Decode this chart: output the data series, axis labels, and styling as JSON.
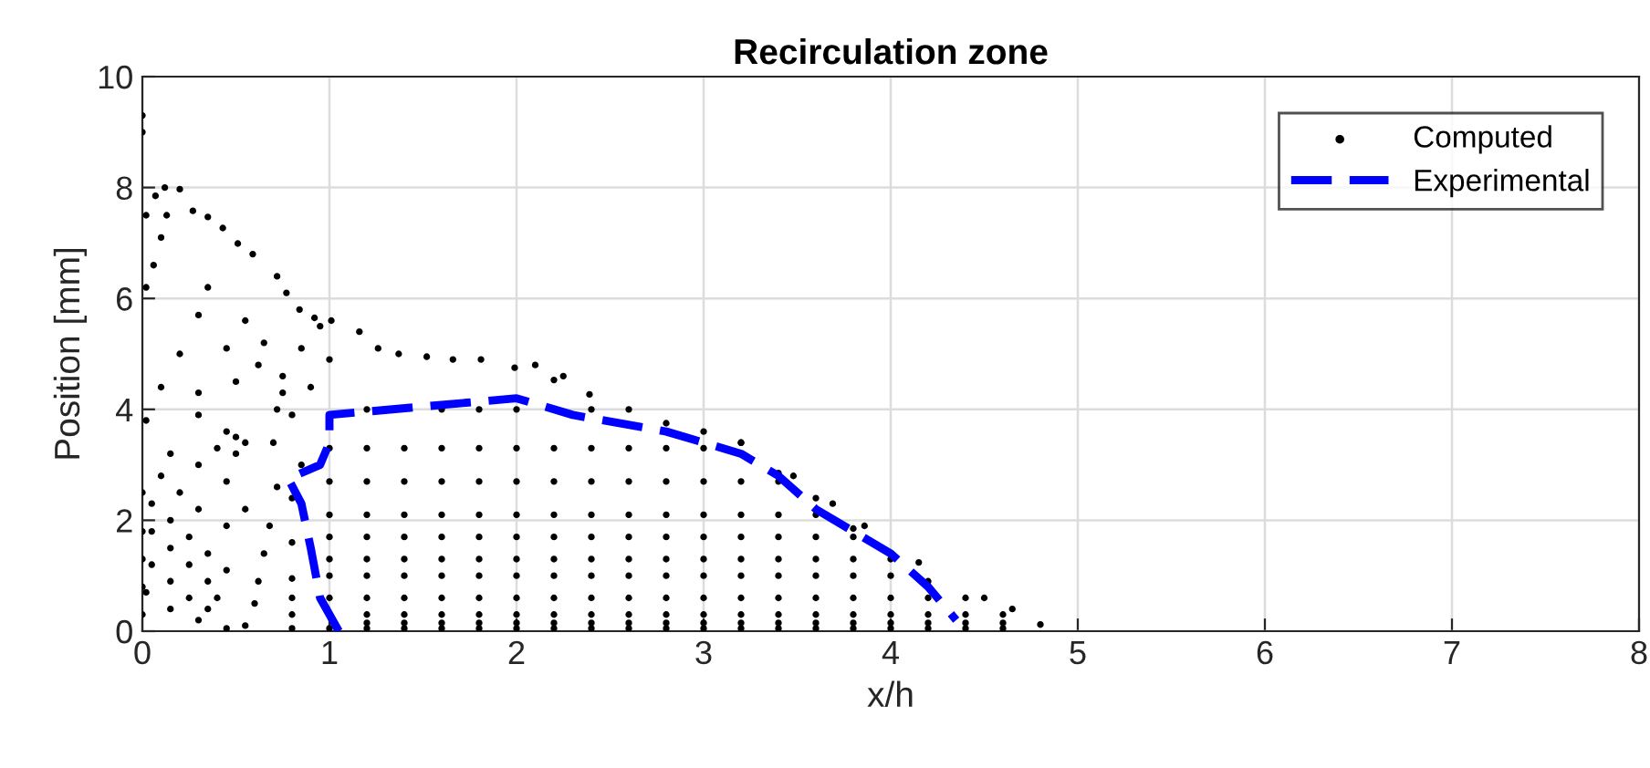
{
  "chart_data": {
    "type": "scatter",
    "title": "Recirculation zone",
    "xlabel": "x/h",
    "ylabel": "Position [mm]",
    "xlim": [
      0,
      8
    ],
    "ylim": [
      0,
      10
    ],
    "xticks": [
      0,
      1,
      2,
      3,
      4,
      5,
      6,
      7,
      8
    ],
    "yticks": [
      0,
      2,
      4,
      6,
      8,
      10
    ],
    "grid": true,
    "legend": "top right",
    "series": [
      {
        "name": "Computed",
        "marker": "circle",
        "color": "#000000",
        "x": [
          1.0,
          1.0,
          1.0,
          1.0,
          1.0,
          1.0,
          1.0,
          1.0,
          1.2,
          1.2,
          1.2,
          1.2,
          1.2,
          1.2,
          1.2,
          1.2,
          1.2,
          1.2,
          1.2,
          1.4,
          1.4,
          1.4,
          1.4,
          1.4,
          1.4,
          1.4,
          1.4,
          1.4,
          1.4,
          1.6,
          1.6,
          1.6,
          1.6,
          1.6,
          1.6,
          1.6,
          1.6,
          1.6,
          1.6,
          1.6,
          1.8,
          1.8,
          1.8,
          1.8,
          1.8,
          1.8,
          1.8,
          1.8,
          1.8,
          1.8,
          1.8,
          2.0,
          2.0,
          2.0,
          2.0,
          2.0,
          2.0,
          2.0,
          2.0,
          2.0,
          2.0,
          2.0,
          2.2,
          2.2,
          2.2,
          2.2,
          2.2,
          2.2,
          2.2,
          2.2,
          2.2,
          2.2,
          2.4,
          2.4,
          2.4,
          2.4,
          2.4,
          2.4,
          2.4,
          2.4,
          2.4,
          2.4,
          2.4,
          2.6,
          2.6,
          2.6,
          2.6,
          2.6,
          2.6,
          2.6,
          2.6,
          2.6,
          2.6,
          2.6,
          2.8,
          2.8,
          2.8,
          2.8,
          2.8,
          2.8,
          2.8,
          2.8,
          2.8,
          2.8,
          2.8,
          3.0,
          3.0,
          3.0,
          3.0,
          3.0,
          3.0,
          3.0,
          3.0,
          3.0,
          3.0,
          3.0,
          3.2,
          3.2,
          3.2,
          3.2,
          3.2,
          3.2,
          3.2,
          3.2,
          3.2,
          3.2,
          3.4,
          3.4,
          3.4,
          3.4,
          3.4,
          3.4,
          3.4,
          3.4,
          3.4,
          3.4,
          3.6,
          3.6,
          3.6,
          3.6,
          3.6,
          3.6,
          3.6,
          3.6,
          3.6,
          3.8,
          3.8,
          3.8,
          3.8,
          3.8,
          3.8,
          3.8,
          3.8,
          4.0,
          4.0,
          4.0,
          4.0,
          4.0,
          4.0,
          4.2,
          4.2,
          4.2,
          4.2,
          4.2,
          4.4,
          4.4,
          4.4,
          4.4,
          4.6,
          4.6,
          4.6,
          4.8,
          0.8,
          0.8,
          0.8,
          0.8,
          0.8,
          0.8,
          0.85,
          0.55,
          0.6,
          0.62,
          0.65,
          0.68,
          0.72,
          0.7,
          0.72,
          0.75,
          0.85,
          0.95,
          1.0,
          0.9,
          0.8,
          0.02,
          0.15,
          0.3,
          0.45,
          0.05,
          0.15,
          0.25,
          0.35,
          0.05,
          0.15,
          0.25,
          0.35,
          0.4,
          0.05,
          0.15,
          0.25,
          0.35,
          0.45,
          0.1,
          0.2,
          0.3,
          0.45,
          0.15,
          0.3,
          0.45,
          0.55,
          0.4,
          0.45,
          0.5,
          0.55,
          0.5,
          0.3,
          0.3,
          0.5,
          0.45,
          0.55,
          0.65,
          0.75,
          0.62,
          0.0,
          0.0,
          0.0,
          0.0,
          0.0,
          0.02,
          0.1,
          0.2,
          0.3,
          0.35,
          0.02,
          0.06,
          0.1,
          0.13,
          0.0,
          0.0,
          0.12,
          0.2,
          0.07,
          0.02,
          0.27,
          0.35,
          0.43,
          0.51,
          0.59,
          0.72,
          0.77,
          0.84,
          0.92,
          1.01,
          1.16,
          1.26,
          1.37,
          1.52,
          1.66,
          1.81,
          1.99,
          2.1,
          2.25,
          2.2,
          2.39,
          3.2,
          3.48,
          3.69,
          3.86,
          4.15,
          4.5,
          4.65
        ],
        "values": [
          0.05,
          0.6,
          1.0,
          1.3,
          1.7,
          2.1,
          2.7,
          3.3,
          0.05,
          0.15,
          0.3,
          0.6,
          1.0,
          1.3,
          1.7,
          2.1,
          2.7,
          3.3,
          4.0,
          0.05,
          0.15,
          0.3,
          0.6,
          1.0,
          1.3,
          1.7,
          2.1,
          2.7,
          3.3,
          0.05,
          0.15,
          0.3,
          0.6,
          1.0,
          1.3,
          1.7,
          2.1,
          2.7,
          3.3,
          4.0,
          0.05,
          0.15,
          0.3,
          0.6,
          1.0,
          1.3,
          1.7,
          2.1,
          2.7,
          3.3,
          4.0,
          0.05,
          0.15,
          0.3,
          0.6,
          1.0,
          1.3,
          1.7,
          2.1,
          2.7,
          3.3,
          4.0,
          0.05,
          0.15,
          0.3,
          0.6,
          1.0,
          1.3,
          1.7,
          2.1,
          2.7,
          3.3,
          0.05,
          0.15,
          0.3,
          0.6,
          1.0,
          1.3,
          1.7,
          2.1,
          2.7,
          3.3,
          4.0,
          0.05,
          0.15,
          0.3,
          0.6,
          1.0,
          1.3,
          1.7,
          2.1,
          2.7,
          3.3,
          4.0,
          0.05,
          0.15,
          0.3,
          0.6,
          1.0,
          1.3,
          1.7,
          2.1,
          2.7,
          3.3,
          3.75,
          0.05,
          0.15,
          0.3,
          0.6,
          1.0,
          1.3,
          1.7,
          2.1,
          2.7,
          3.3,
          3.6,
          0.05,
          0.15,
          0.3,
          0.6,
          1.0,
          1.3,
          1.7,
          2.1,
          2.7,
          3.4,
          0.05,
          0.15,
          0.3,
          0.6,
          1.0,
          1.3,
          1.7,
          2.1,
          2.7,
          2.85,
          0.05,
          0.15,
          0.3,
          0.6,
          1.0,
          1.3,
          1.7,
          2.1,
          2.4,
          0.05,
          0.15,
          0.3,
          0.6,
          1.0,
          1.3,
          1.7,
          1.85,
          0.05,
          0.15,
          0.3,
          0.6,
          1.0,
          1.3,
          0.05,
          0.15,
          0.3,
          0.6,
          0.9,
          0.05,
          0.15,
          0.3,
          0.6,
          0.05,
          0.15,
          0.3,
          0.12,
          0.05,
          0.3,
          0.6,
          0.95,
          1.6,
          2.4,
          3.0,
          0.1,
          0.5,
          0.9,
          1.4,
          1.9,
          2.6,
          3.4,
          4.0,
          4.6,
          5.1,
          5.5,
          4.9,
          4.4,
          3.9,
          0.7,
          0.4,
          0.2,
          0.05,
          1.2,
          0.9,
          0.6,
          0.4,
          1.8,
          1.5,
          1.2,
          0.9,
          0.6,
          2.3,
          2.0,
          1.7,
          1.4,
          1.1,
          2.8,
          2.5,
          2.2,
          1.9,
          3.2,
          3.0,
          2.7,
          2.2,
          3.3,
          3.6,
          3.5,
          3.4,
          3.2,
          4.3,
          3.9,
          4.5,
          5.1,
          5.6,
          5.2,
          4.3,
          4.8,
          0.3,
          0.8,
          1.3,
          1.8,
          2.5,
          3.8,
          4.4,
          5.0,
          5.7,
          6.2,
          6.2,
          6.6,
          7.1,
          7.5,
          9.3,
          9.0,
          8.0,
          7.97,
          7.85,
          7.5,
          7.58,
          7.47,
          7.27,
          6.99,
          6.8,
          6.4,
          6.1,
          5.8,
          5.65,
          5.6,
          5.4,
          5.1,
          5.0,
          4.95,
          4.9,
          4.9,
          4.75,
          4.8,
          4.6,
          4.53,
          4.27,
          3.4,
          2.8,
          2.3,
          1.9,
          1.24,
          0.6,
          0.4
        ]
      },
      {
        "name": "Experimental",
        "type": "line",
        "line_style": "dashed",
        "marker": "none",
        "color": "#0000ff",
        "x": [
          1.05,
          0.95,
          0.9,
          0.85,
          0.78,
          0.95,
          1.0,
          1.0,
          1.5,
          2.0,
          2.3,
          2.8,
          3.2,
          3.4,
          3.6,
          3.8,
          4.0,
          4.2,
          4.35
        ],
        "values": [
          0.0,
          0.6,
          1.5,
          2.3,
          2.75,
          3.0,
          3.4,
          3.9,
          4.05,
          4.2,
          3.9,
          3.6,
          3.2,
          2.8,
          2.2,
          1.8,
          1.4,
          0.8,
          0.2
        ]
      }
    ]
  }
}
